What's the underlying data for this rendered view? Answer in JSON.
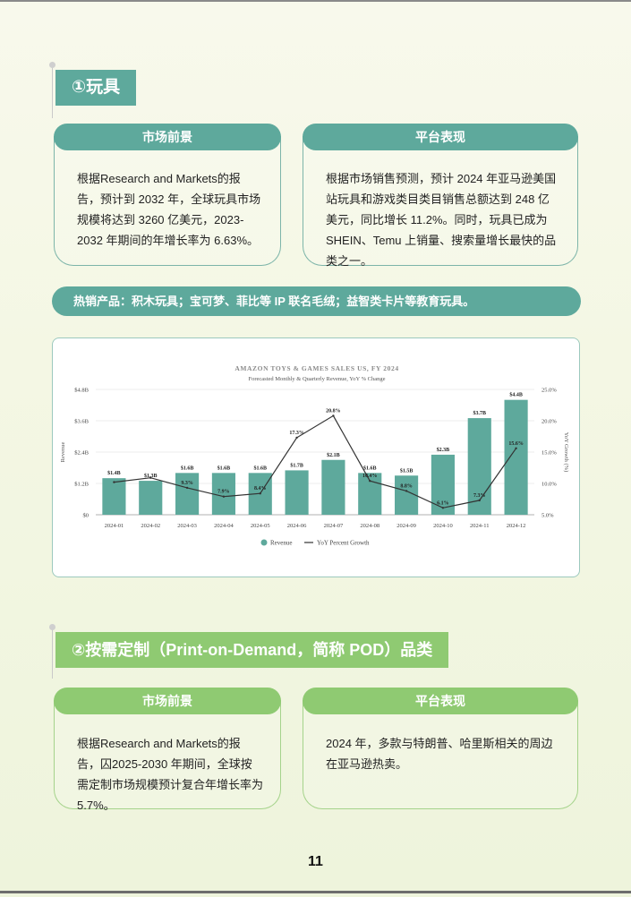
{
  "page_number": "11",
  "section1": {
    "title": "①玩具",
    "card_left": {
      "header": "市场前景",
      "text": "根据Research and Markets的报告，预计到 2032 年，全球玩具市场规模将达到 3260 亿美元，2023-2032 年期间的年增长率为 6.63%。"
    },
    "card_right": {
      "header": "平台表现",
      "text": "根据市场销售预测，预计 2024 年亚马逊美国站玩具和游戏类目类目销售总额达到 248 亿美元，同比增长 11.2%。同时，玩具已成为 SHEIN、Temu 上销量、搜索量增长最快的品类之一。"
    },
    "hot_products": "热销产品：积木玩具；宝可梦、菲比等 IP 联名毛绒；益智类卡片等教育玩具。"
  },
  "section2": {
    "title": "②按需定制（Print-on-Demand，简称 POD）品类",
    "card_left": {
      "header": "市场前景",
      "text": "根据Research and Markets的报告，囚2025-2030 年期间，全球按需定制市场规模预计复合年增长率为 5.7%。"
    },
    "card_right": {
      "header": "平台表现",
      "text": "2024 年，多款与特朗普、哈里斯相关的周边在亚马逊热卖。"
    }
  },
  "colors": {
    "teal": "#5ea99c",
    "green": "#8fca72",
    "line": "#333333"
  },
  "chart_data": {
    "type": "bar",
    "title": "AMAZON TOYS & GAMES SALES US, FY 2024",
    "subtitle": "Forecasted Monthly & Quarterly Revenue, YoY % Change",
    "ylabel": "Revenue",
    "y2label": "YoY Growth (%)",
    "categories": [
      "2024-01",
      "2024-02",
      "2024-03",
      "2024-04",
      "2024-05",
      "2024-06",
      "2024-07",
      "2024-08",
      "2024-09",
      "2024-10",
      "2024-11",
      "2024-12"
    ],
    "ylim": [
      0,
      4.8
    ],
    "y2lim": [
      5.0,
      25.0
    ],
    "yticks": [
      "$0",
      "$1.2B",
      "$2.4B",
      "$3.6B",
      "$4.8B"
    ],
    "y2ticks": [
      "5.0%",
      "10.0%",
      "15.0%",
      "20.0%",
      "25.0%"
    ],
    "series": [
      {
        "name": "Revenue",
        "kind": "bar",
        "values": [
          1.4,
          1.3,
          1.6,
          1.6,
          1.6,
          1.7,
          2.1,
          1.6,
          1.5,
          2.3,
          3.7,
          4.4
        ],
        "labels": [
          "$1.4B",
          "$1.3B",
          "$1.6B",
          "$1.6B",
          "$1.6B",
          "$1.7B",
          "$2.1B",
          "$1.6B",
          "$1.5B",
          "$2.3B",
          "$3.7B",
          "$4.4B"
        ]
      },
      {
        "name": "YoY Percent Growth",
        "kind": "line",
        "values": [
          10.2,
          10.9,
          9.3,
          7.9,
          8.4,
          17.3,
          20.8,
          10.4,
          8.8,
          6.1,
          7.3,
          15.6
        ],
        "labels": [
          "",
          "",
          "9.3%",
          "7.9%",
          "8.4%",
          "17.3%",
          "20.8%",
          "10.4%",
          "8.8%",
          "6.1%",
          "7.3%",
          "15.6%"
        ]
      }
    ],
    "legend": "bottom-center",
    "grid": true
  }
}
